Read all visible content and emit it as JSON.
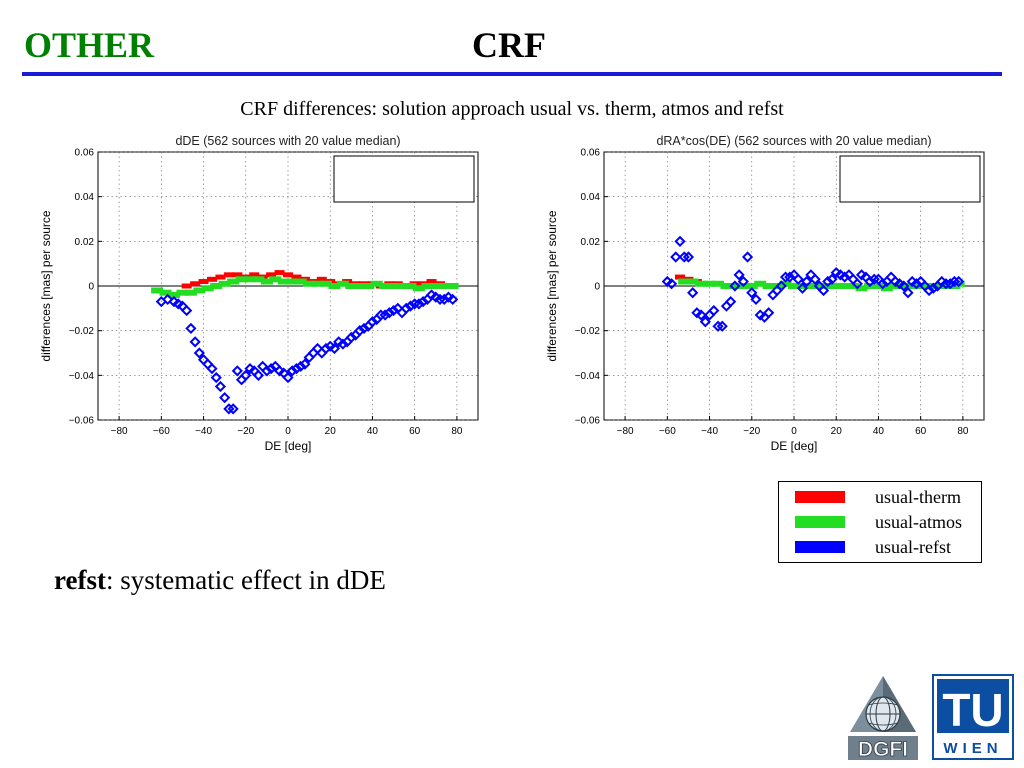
{
  "header": {
    "left_title": "OTHER",
    "center_title": "CRF"
  },
  "subtitle": "CRF differences: solution approach usual vs. therm, atmos and refst",
  "legend": [
    {
      "label": "usual-therm",
      "color": "#ff0000"
    },
    {
      "label": "usual-atmos",
      "color": "#22dd22"
    },
    {
      "label": "usual-refst",
      "color": "#0000ff"
    }
  ],
  "bottom_text": {
    "bold": "refst",
    "rest": ": systematic effect in dDE"
  },
  "logos": {
    "dgfi": "DGFI",
    "tu": "TU",
    "tu_sub": "WIEN"
  },
  "chart_data": [
    {
      "type": "scatter",
      "title": "dDE (562 sources with 20 value median)",
      "xlabel": "DE [deg]",
      "ylabel": "differences [mas] per source",
      "xlim": [
        -90,
        90
      ],
      "ylim": [
        -0.06,
        0.06
      ],
      "xticks": [
        -80,
        -60,
        -40,
        -20,
        0,
        20,
        40,
        60,
        80
      ],
      "yticks": [
        -0.06,
        -0.04,
        -0.02,
        0,
        0.02,
        0.04,
        0.06
      ],
      "grid": true,
      "series": [
        {
          "name": "usual-therm",
          "color": "#ff0000",
          "x": [
            -48,
            -44,
            -40,
            -36,
            -32,
            -28,
            -24,
            -20,
            -16,
            -12,
            -8,
            -4,
            0,
            4,
            8,
            12,
            16,
            20,
            24,
            28,
            32,
            36,
            40,
            44,
            48,
            52,
            56,
            60,
            64,
            68,
            72,
            76
          ],
          "y": [
            0.0,
            0.001,
            0.002,
            0.003,
            0.004,
            0.005,
            0.005,
            0.004,
            0.005,
            0.004,
            0.005,
            0.006,
            0.005,
            0.004,
            0.003,
            0.002,
            0.003,
            0.002,
            0.001,
            0.002,
            0.001,
            0.001,
            0.001,
            0.0,
            0.001,
            0.001,
            0.0,
            0.001,
            0.001,
            0.002,
            0.001,
            0.0
          ]
        },
        {
          "name": "usual-atmos",
          "color": "#22dd22",
          "x": [
            -62,
            -58,
            -54,
            -50,
            -46,
            -42,
            -38,
            -34,
            -30,
            -26,
            -22,
            -18,
            -14,
            -10,
            -6,
            -2,
            2,
            6,
            10,
            14,
            18,
            22,
            26,
            30,
            34,
            38,
            42,
            46,
            50,
            54,
            58,
            62,
            66,
            70,
            74,
            78
          ],
          "y": [
            -0.002,
            -0.003,
            -0.004,
            -0.003,
            -0.003,
            -0.002,
            -0.001,
            0.0,
            0.001,
            0.002,
            0.003,
            0.003,
            0.003,
            0.002,
            0.003,
            0.002,
            0.002,
            0.002,
            0.001,
            0.001,
            0.001,
            0.0,
            0.001,
            0.0,
            0.0,
            0.0,
            0.001,
            0.0,
            0.0,
            0.0,
            0.0,
            -0.001,
            0.0,
            0.0,
            0.0,
            0.0
          ]
        },
        {
          "name": "usual-refst",
          "color": "#0000ff",
          "x": [
            -60,
            -57,
            -54,
            -52,
            -50,
            -48,
            -46,
            -44,
            -42,
            -40,
            -38,
            -36,
            -34,
            -32,
            -30,
            -28,
            -26,
            -24,
            -22,
            -20,
            -18,
            -16,
            -14,
            -12,
            -10,
            -8,
            -6,
            -4,
            -2,
            0,
            2,
            4,
            6,
            8,
            10,
            12,
            14,
            16,
            18,
            20,
            22,
            24,
            26,
            28,
            30,
            32,
            34,
            36,
            38,
            40,
            42,
            44,
            46,
            48,
            50,
            52,
            54,
            56,
            58,
            60,
            62,
            64,
            66,
            68,
            70,
            72,
            74,
            76,
            78
          ],
          "y": [
            -0.007,
            -0.006,
            -0.007,
            -0.008,
            -0.009,
            -0.011,
            -0.019,
            -0.025,
            -0.03,
            -0.033,
            -0.035,
            -0.037,
            -0.041,
            -0.045,
            -0.05,
            -0.055,
            -0.055,
            -0.038,
            -0.042,
            -0.04,
            -0.037,
            -0.038,
            -0.04,
            -0.036,
            -0.038,
            -0.037,
            -0.036,
            -0.038,
            -0.039,
            -0.041,
            -0.038,
            -0.037,
            -0.036,
            -0.035,
            -0.032,
            -0.03,
            -0.028,
            -0.03,
            -0.028,
            -0.027,
            -0.028,
            -0.025,
            -0.026,
            -0.025,
            -0.023,
            -0.022,
            -0.02,
            -0.019,
            -0.018,
            -0.016,
            -0.015,
            -0.013,
            -0.013,
            -0.012,
            -0.011,
            -0.01,
            -0.012,
            -0.01,
            -0.009,
            -0.008,
            -0.008,
            -0.007,
            -0.006,
            -0.004,
            -0.005,
            -0.006,
            -0.006,
            -0.005,
            -0.006
          ]
        }
      ]
    },
    {
      "type": "scatter",
      "title": "dRA*cos(DE) (562 sources with 20 value median)",
      "xlabel": "DE [deg]",
      "ylabel": "differences [mas] per source",
      "xlim": [
        -90,
        90
      ],
      "ylim": [
        -0.06,
        0.06
      ],
      "xticks": [
        -80,
        -60,
        -40,
        -20,
        0,
        20,
        40,
        60,
        80
      ],
      "yticks": [
        -0.06,
        -0.04,
        -0.02,
        0,
        0.02,
        0.04,
        0.06
      ],
      "grid": true,
      "series": [
        {
          "name": "usual-therm",
          "color": "#ff0000",
          "x": [
            -54,
            -50,
            -46
          ],
          "y": [
            0.004,
            0.003,
            0.002
          ]
        },
        {
          "name": "usual-atmos",
          "color": "#22dd22",
          "x": [
            -52,
            -48,
            -44,
            -40,
            -36,
            -32,
            -28,
            -24,
            -20,
            -16,
            -12,
            -8,
            -4,
            0,
            4,
            8,
            12,
            16,
            20,
            24,
            28,
            32,
            36,
            40,
            44,
            48,
            52,
            56,
            60,
            64,
            68,
            72,
            76,
            78
          ],
          "y": [
            0.002,
            0.002,
            0.001,
            0.001,
            0.001,
            0.0,
            0.0,
            0.0,
            0.0,
            0.001,
            0.0,
            0.0,
            0.001,
            0.0,
            0.0,
            0.0,
            0.0,
            0.0,
            0.0,
            0.0,
            0.0,
            -0.001,
            0.0,
            0.0,
            -0.001,
            0.0,
            0.0,
            0.0,
            0.0,
            0.0,
            0.0,
            0.0,
            0.0,
            0.001
          ]
        },
        {
          "name": "usual-refst",
          "color": "#0000ff",
          "x": [
            -60,
            -58,
            -56,
            -54,
            -52,
            -50,
            -48,
            -46,
            -44,
            -42,
            -40,
            -38,
            -36,
            -34,
            -32,
            -30,
            -28,
            -26,
            -24,
            -22,
            -20,
            -18,
            -16,
            -14,
            -12,
            -10,
            -8,
            -6,
            -4,
            -2,
            0,
            2,
            4,
            6,
            8,
            10,
            12,
            14,
            16,
            18,
            20,
            22,
            24,
            26,
            28,
            30,
            32,
            34,
            36,
            38,
            40,
            42,
            44,
            46,
            48,
            50,
            52,
            54,
            56,
            58,
            60,
            62,
            64,
            66,
            68,
            70,
            72,
            74,
            76,
            78
          ],
          "y": [
            0.002,
            0.001,
            0.013,
            0.02,
            0.013,
            0.013,
            -0.003,
            -0.012,
            -0.013,
            -0.016,
            -0.013,
            -0.011,
            -0.018,
            -0.018,
            -0.009,
            -0.007,
            0.0,
            0.005,
            0.002,
            0.013,
            -0.003,
            -0.006,
            -0.013,
            -0.014,
            -0.012,
            -0.004,
            -0.002,
            0.0,
            0.004,
            0.004,
            0.005,
            0.003,
            -0.001,
            0.002,
            0.005,
            0.003,
            0.0,
            -0.002,
            0.002,
            0.003,
            0.006,
            0.005,
            0.004,
            0.005,
            0.003,
            0.001,
            0.005,
            0.004,
            0.002,
            0.003,
            0.003,
            0.001,
            0.002,
            0.004,
            0.002,
            0.001,
            0.0,
            -0.003,
            0.002,
            0.001,
            0.002,
            0.0,
            -0.002,
            -0.001,
            0.0,
            0.002,
            0.001,
            0.001,
            0.002,
            0.002
          ]
        }
      ]
    }
  ]
}
